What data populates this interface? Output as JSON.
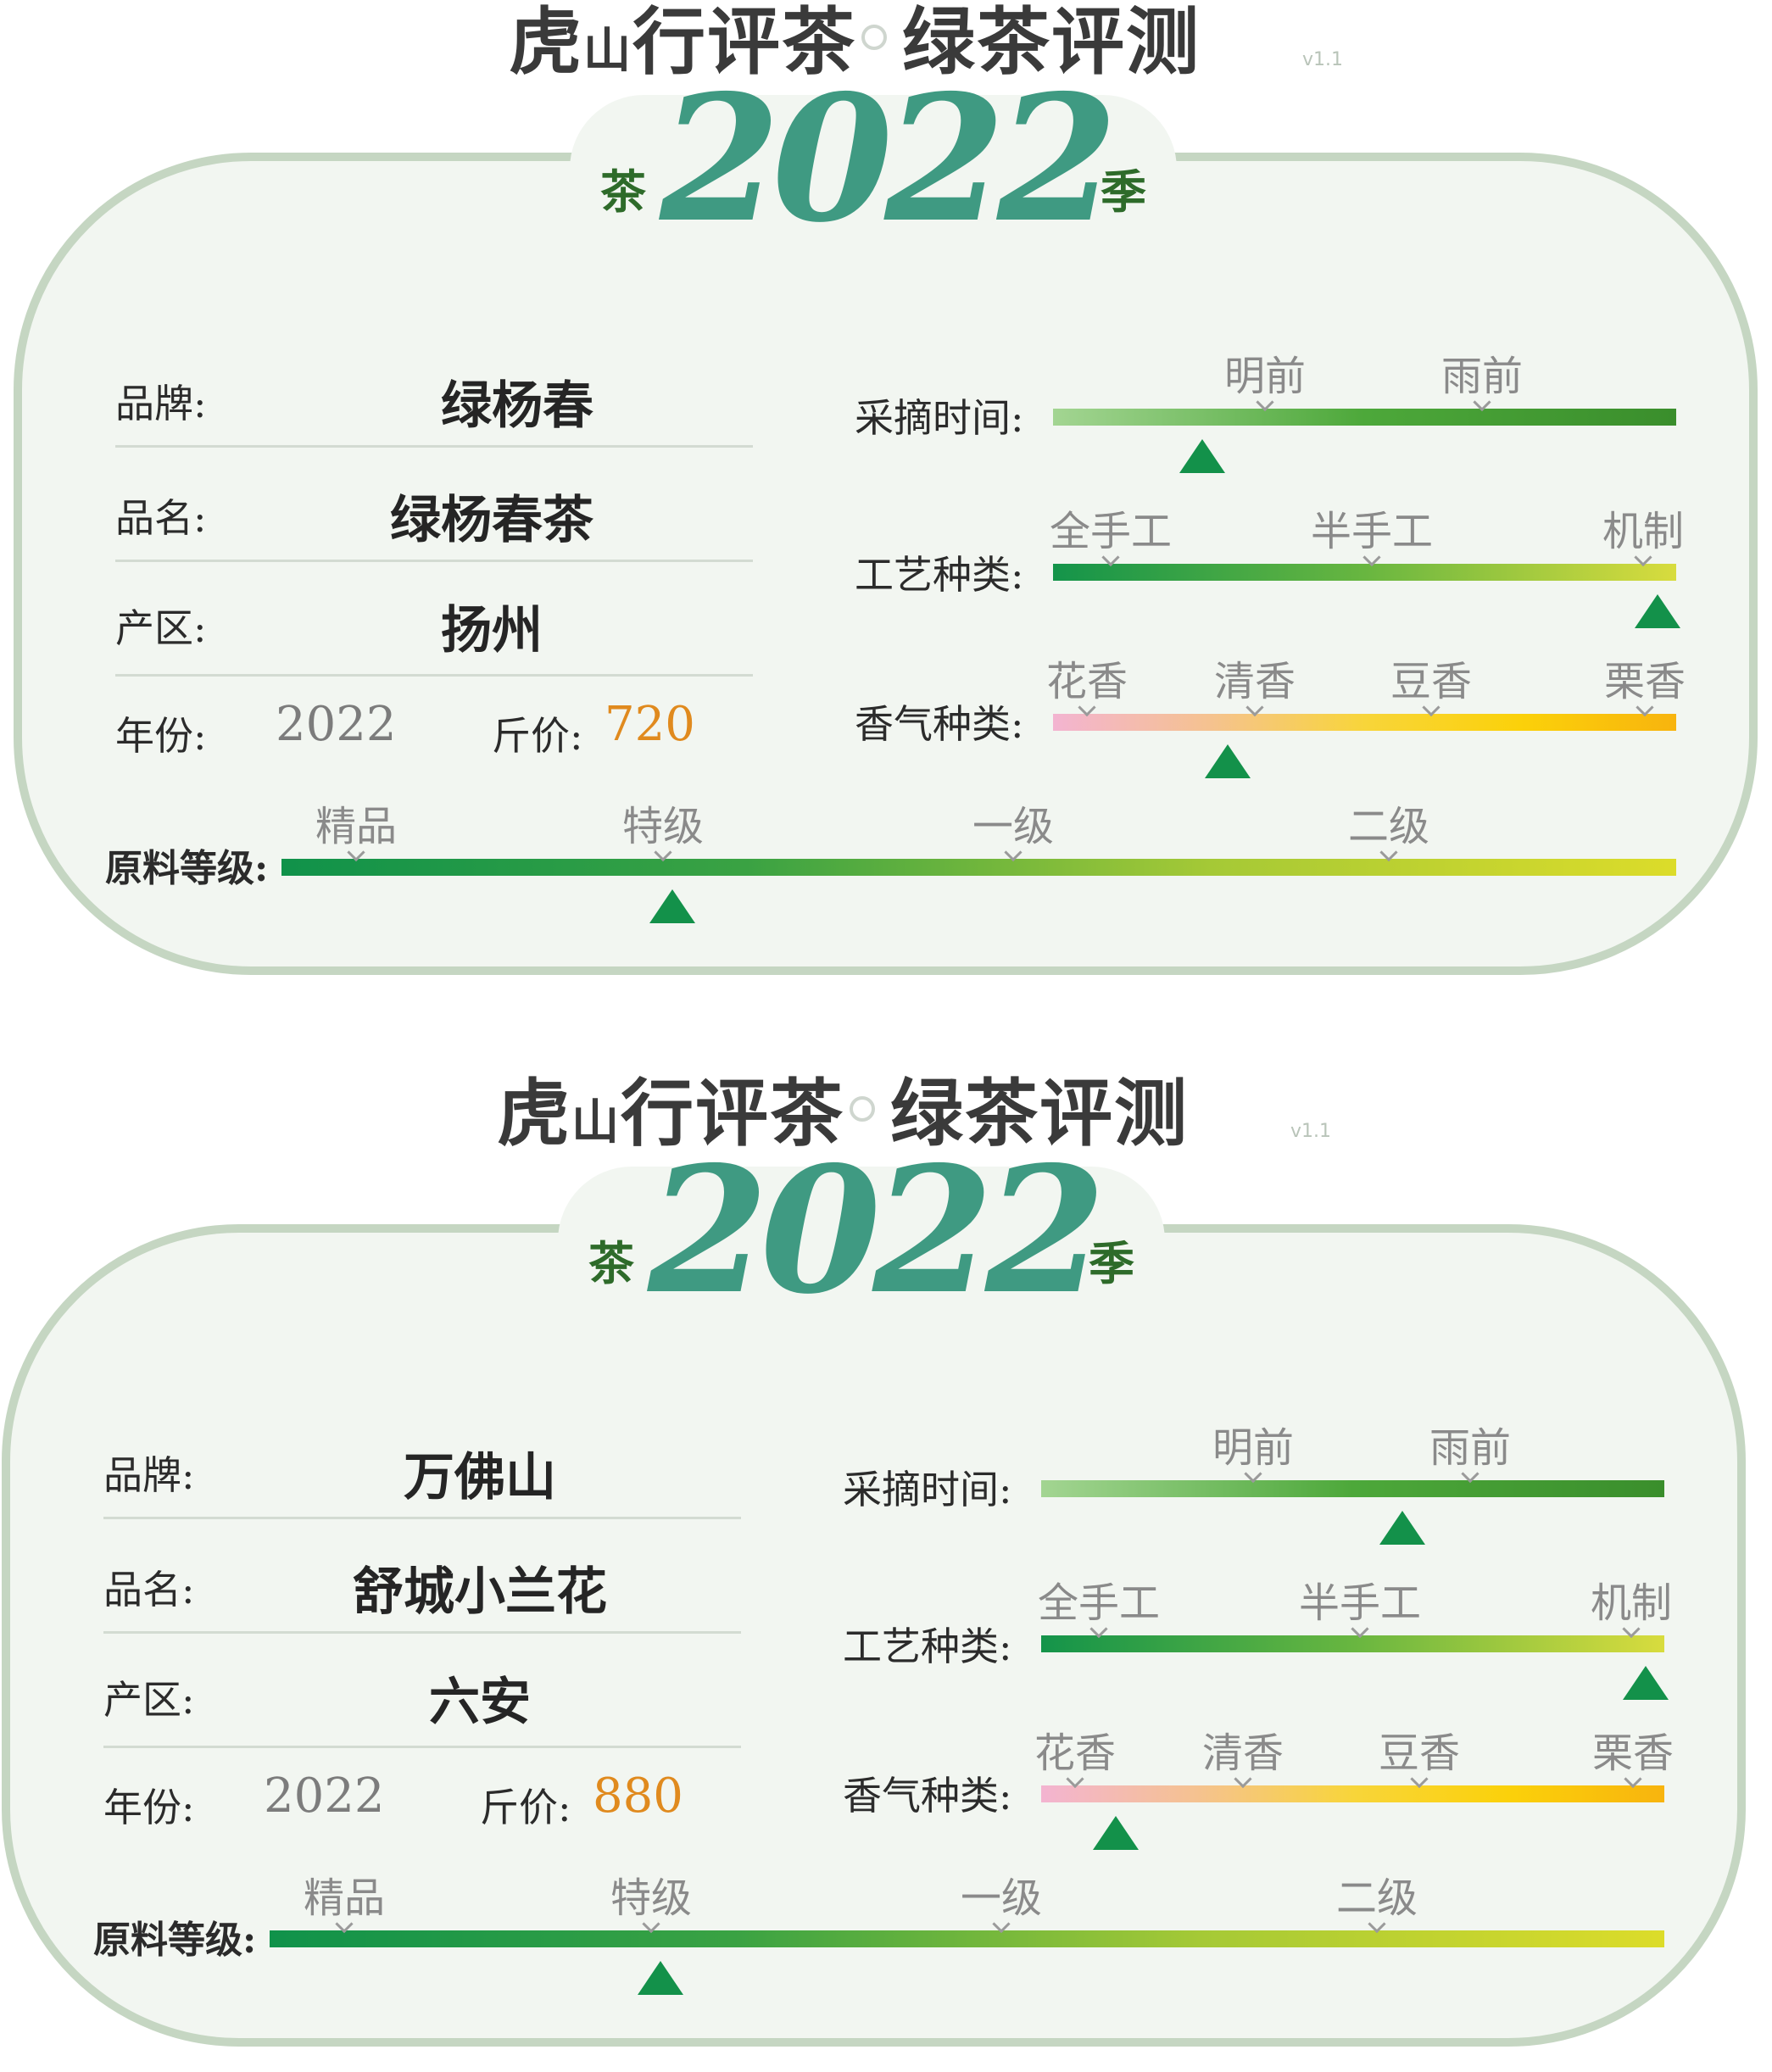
{
  "header": {
    "title_part1": "虎",
    "title_part2": "山",
    "title_part3": "行评茶",
    "title_part4": "绿茶评测",
    "version": "v1.1",
    "badge_left": "茶",
    "badge_year": "2022",
    "badge_right": "季"
  },
  "labels": {
    "brand": "品牌:",
    "name": "品名:",
    "origin": "产区:",
    "year": "年份:",
    "price": "斤价:",
    "grade": "原料等级:",
    "pick_time": "采摘时间:",
    "craft": "工艺种类:",
    "aroma": "香气种类:"
  },
  "scales": {
    "pick_time": [
      "明前",
      "雨前"
    ],
    "craft": [
      "全手工",
      "半手工",
      "机制"
    ],
    "aroma": [
      "花香",
      "清香",
      "豆香",
      "栗香"
    ],
    "grade": [
      "精品",
      "特级",
      "一级",
      "二级"
    ]
  },
  "colors": {
    "frame": "#c5d6c2",
    "year_badge": "#3f9a82",
    "marker": "#13914a",
    "price": "#e08a1e"
  },
  "cards": [
    {
      "brand": "绿杨春",
      "name": "绿杨春茶",
      "origin": "扬州",
      "year": "2022",
      "price": "720",
      "pick_time_position": 0.24,
      "craft_position": 0.97,
      "aroma_position": 0.28,
      "grade_position": 0.28
    },
    {
      "brand": "万佛山",
      "name": "舒城小兰花",
      "origin": "六安",
      "year": "2022",
      "price": "880",
      "pick_time_position": 0.58,
      "craft_position": 0.97,
      "aroma_position": 0.12,
      "grade_position": 0.28
    }
  ]
}
